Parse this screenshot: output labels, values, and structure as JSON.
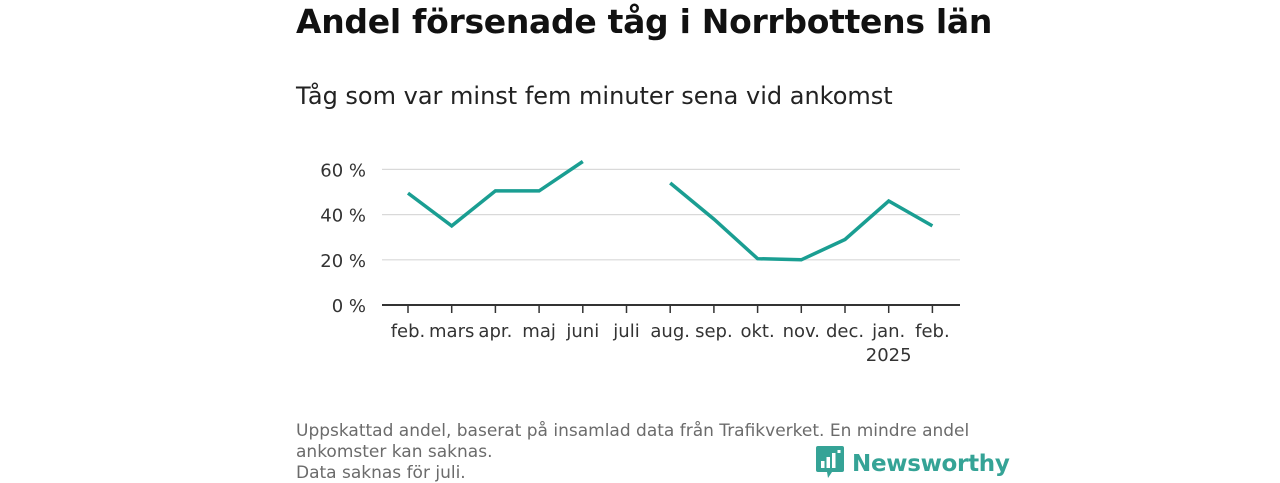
{
  "title": "Andel försenade tåg i Norrbottens län",
  "subtitle": "Tåg som var minst fem minuter sena vid ankomst",
  "notes": [
    "Uppskattad andel, baserat på insamlad data från Trafikverket. En mindre andel",
    "ankomster kan saknas.",
    "Data saknas för juli."
  ],
  "brand": {
    "name": "Newsworthy",
    "icon": "bar-chart-speech-bubble-icon",
    "color": "#35a396"
  },
  "colors": {
    "line": "#1a9e92",
    "grid": "#d9d9d9",
    "axis": "#333333"
  },
  "chart_data": {
    "type": "line",
    "categories": [
      "feb.",
      "mars",
      "apr.",
      "maj",
      "juni",
      "juli",
      "aug.",
      "sep.",
      "okt.",
      "nov.",
      "dec.",
      "jan.",
      "feb."
    ],
    "category_sublabels": [
      "",
      "",
      "",
      "",
      "",
      "",
      "",
      "",
      "",
      "",
      "",
      "2025",
      ""
    ],
    "series": [
      {
        "values": [
          49.5,
          35,
          50.5,
          50.5,
          63.5,
          null,
          54,
          38,
          20.5,
          20,
          29,
          46,
          35
        ]
      }
    ],
    "yticks": [
      0,
      20,
      40,
      60
    ],
    "ytick_labels": [
      "0 %",
      "20 %",
      "40 %",
      "60 %"
    ],
    "ylim": [
      0,
      65
    ],
    "grid": true,
    "xlabel": "",
    "ylabel": ""
  }
}
